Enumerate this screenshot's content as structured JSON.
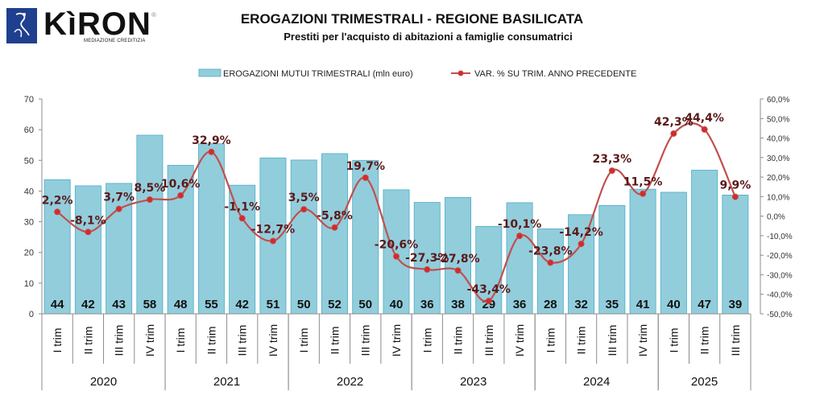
{
  "logo": {
    "name": "KìRON",
    "registered": "®",
    "tagline": "MEDIAZIONE CREDITIZIA"
  },
  "chart_data": {
    "type": "bar",
    "title": "EROGAZIONI TRIMESTRALI - REGIONE BASILICATA",
    "subtitle": "Prestiti per l'acquisto di abitazioni a famiglie consumatrici",
    "categories": [
      "I trim",
      "II trim",
      "III trim",
      "IV trim",
      "I trim",
      "II trim",
      "III trim",
      "IV trim",
      "I trim",
      "II trim",
      "III trim",
      "IV trim",
      "I trim",
      "II trim",
      "III trim",
      "IV trim",
      "I trim",
      "II trim",
      "III trim",
      "IV trim",
      "I trim",
      "II trim",
      "III trim"
    ],
    "years": [
      {
        "label": "2020",
        "count": 4
      },
      {
        "label": "2021",
        "count": 4
      },
      {
        "label": "2022",
        "count": 4
      },
      {
        "label": "2023",
        "count": 4
      },
      {
        "label": "2024",
        "count": 4
      },
      {
        "label": "2025",
        "count": 3
      }
    ],
    "series": [
      {
        "name": "EROGAZIONI MUTUI TRIMESTRALI (mln euro)",
        "type": "bar",
        "axis": "left",
        "values": [
          43.7,
          41.7,
          42.5,
          58.2,
          48.4,
          55.4,
          41.9,
          50.8,
          50.1,
          52.2,
          50.0,
          40.4,
          36.3,
          37.9,
          28.5,
          36.2,
          27.7,
          32.3,
          35.3,
          40.6,
          39.6,
          46.8,
          38.7
        ],
        "labels": [
          "44",
          "42",
          "43",
          "58",
          "48",
          "55",
          "42",
          "51",
          "50",
          "52",
          "50",
          "40",
          "36",
          "38",
          "29",
          "36",
          "28",
          "32",
          "35",
          "41",
          "40",
          "47",
          "39"
        ],
        "color": "#92cddc"
      },
      {
        "name": "VAR. % SU TRIM. ANNO PRECEDENTE",
        "type": "line",
        "axis": "right",
        "values": [
          2.2,
          -8.1,
          3.7,
          8.5,
          10.6,
          32.9,
          -1.1,
          -12.7,
          3.5,
          -5.8,
          19.7,
          -20.6,
          -27.3,
          -27.8,
          -43.4,
          -10.1,
          -23.8,
          -14.2,
          23.3,
          11.5,
          42.3,
          44.4,
          9.9
        ],
        "labels": [
          "2,2%",
          "-8,1%",
          "3,7%",
          "8,5%",
          "10,6%",
          "32,9%",
          "-1,1%",
          "-12,7%",
          "3,5%",
          "-5,8%",
          "19,7%",
          "-20,6%",
          "-27,3%",
          "-27,8%",
          "-43,4%",
          "-10,1%",
          "-23,8%",
          "-14,2%",
          "23,3%",
          "11,5%",
          "42,3%",
          "44,4%",
          "9,9%"
        ],
        "color": "#c0504d"
      }
    ],
    "y_left": {
      "min": 0,
      "max": 70,
      "step": 10,
      "ticks": [
        "0",
        "10",
        "20",
        "30",
        "40",
        "50",
        "60",
        "70"
      ]
    },
    "y_right": {
      "min": -50,
      "max": 60,
      "step": 10,
      "ticks": [
        "-50,0%",
        "-40,0%",
        "-30,0%",
        "-20,0%",
        "-10,0%",
        "0,0%",
        "10,0%",
        "20,0%",
        "30,0%",
        "40,0%",
        "50,0%",
        "60,0%"
      ]
    },
    "legend_position": "top",
    "grid": false
  }
}
